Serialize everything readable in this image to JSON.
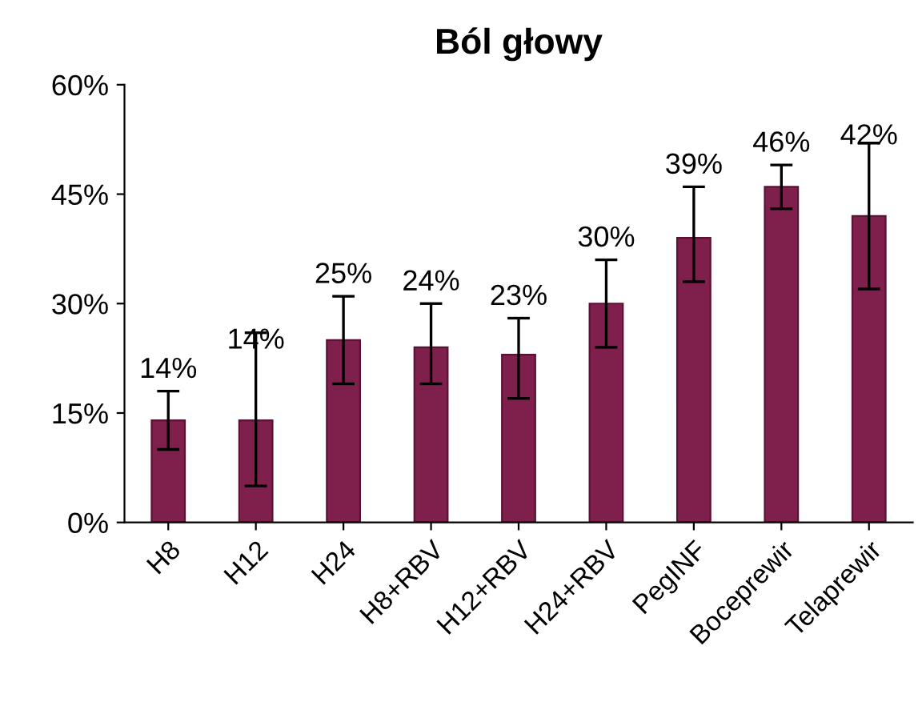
{
  "chart_data": {
    "type": "bar",
    "title": "Ból głowy",
    "categories": [
      "H8",
      "H12",
      "H24",
      "H8+RBV",
      "H12+RBV",
      "H24+RBV",
      "PegINF",
      "Boceprewir",
      "Telaprewir"
    ],
    "values": [
      14,
      14,
      25,
      24,
      23,
      30,
      39,
      46,
      42
    ],
    "value_labels": [
      "14%",
      "14%",
      "25%",
      "24%",
      "23%",
      "30%",
      "39%",
      "46%",
      "42%"
    ],
    "errors": [
      [
        10,
        18
      ],
      [
        5,
        26
      ],
      [
        19,
        31
      ],
      [
        19,
        30
      ],
      [
        17,
        28
      ],
      [
        24,
        36
      ],
      [
        33,
        46
      ],
      [
        43,
        49
      ],
      [
        32,
        52
      ]
    ],
    "color": "#7f1f4c",
    "ylim": [
      0,
      60
    ],
    "yticks": [
      {
        "value": 0,
        "label": "0%"
      },
      {
        "value": 15,
        "label": "15%"
      },
      {
        "value": 30,
        "label": "30%"
      },
      {
        "value": 45,
        "label": "45%"
      },
      {
        "value": 60,
        "label": "60%"
      }
    ],
    "grid": false,
    "legend": false
  }
}
